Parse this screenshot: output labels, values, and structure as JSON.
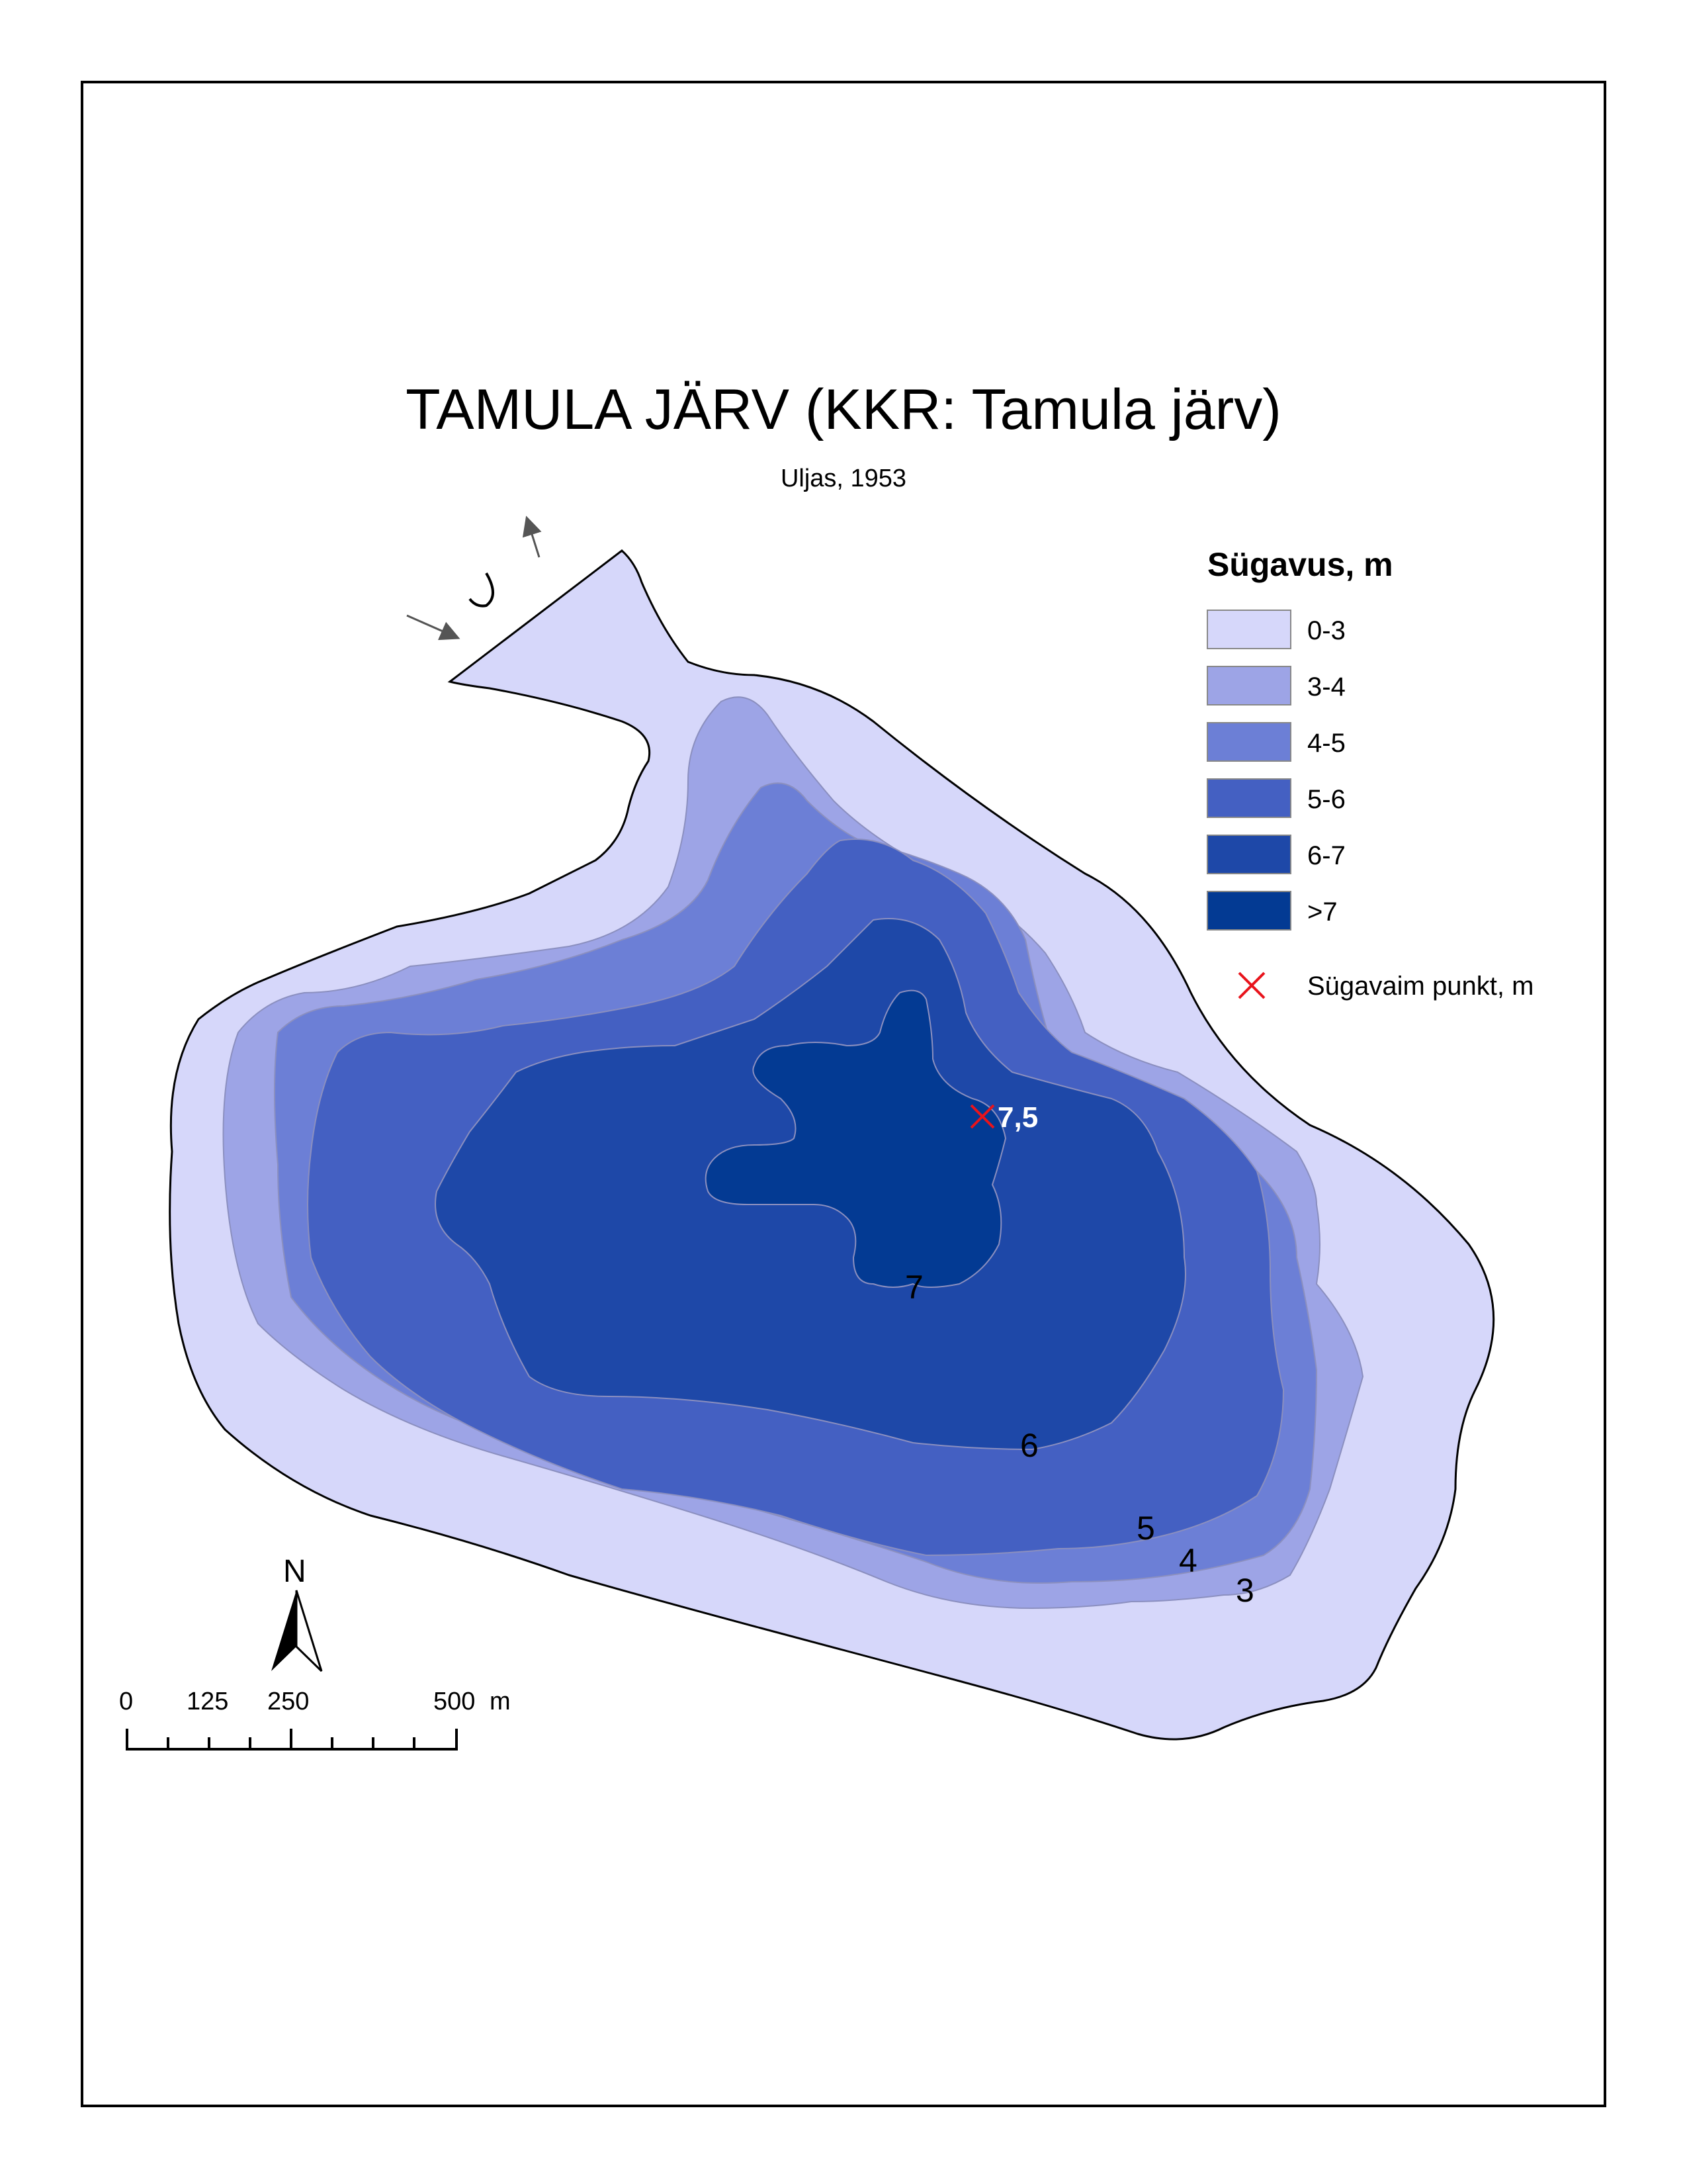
{
  "title": "TAMULA JÄRV (KKR: Tamula järv)",
  "subtitle": "Uljas, 1953",
  "legend": {
    "heading": "Sügavus, m",
    "classes": [
      {
        "label": "0-3",
        "color": "#d6d7fa"
      },
      {
        "label": "3-4",
        "color": "#9da4e6"
      },
      {
        "label": "4-5",
        "color": "#6c7fd6"
      },
      {
        "label": "5-6",
        "color": "#4460c2"
      },
      {
        "label": "6-7",
        "color": "#1e48a8"
      },
      {
        "label": ">7",
        "color": "#033a93"
      }
    ],
    "deepest_point_label": "Sügavaim punkt, m",
    "deepest_point_color": "#e8141c"
  },
  "deepest_point_value": "7,5",
  "contour_labels": [
    "7",
    "6",
    "5",
    "4",
    "3"
  ],
  "north_arrow": {
    "label": "N"
  },
  "scale_bar": {
    "ticks": [
      "0",
      "125",
      "250",
      "500"
    ],
    "unit": "m"
  },
  "inflow_outflow_arrows": [
    "inflow-arrow",
    "outflow-arrow"
  ]
}
